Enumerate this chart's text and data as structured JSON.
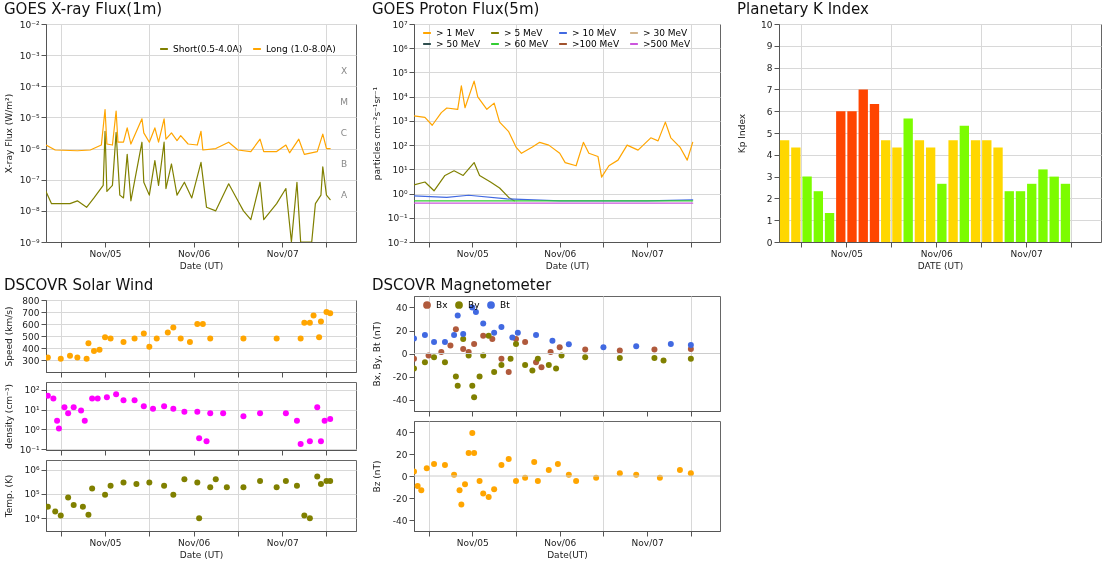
{
  "chart_data": [
    {
      "type": "line",
      "title": "GOES X-ray Flux(1m)",
      "xlabel": "Date (UT)",
      "ylabel": "X-ray Flux (W/m²)",
      "log": true,
      "grid": true,
      "legend": "top right",
      "xlim": [
        "--11-04T20:00",
        "--11-08T08:00"
      ],
      "ylim": [
        1e-09,
        0.01
      ],
      "xticks": [
        {
          "value": "--11-05T00:00",
          "label": null
        },
        {
          "value": "--11-05T12:00",
          "label": "Nov/05"
        },
        {
          "value": "--11-06T00:00",
          "label": null
        },
        {
          "value": "--11-06T12:00",
          "label": "Nov/06"
        },
        {
          "value": "--11-07T00:00",
          "label": null
        },
        {
          "value": "--11-07T12:00",
          "label": "Nov/07"
        },
        {
          "value": "--11-08T00:00",
          "label": null
        }
      ],
      "yticks": [
        {
          "value": 1e-09,
          "label": "10⁻⁹"
        },
        {
          "value": 1e-08,
          "label": "10⁻⁸"
        },
        {
          "value": 1e-07,
          "label": "10⁻⁷"
        },
        {
          "value": 1e-06,
          "label": "10⁻⁶"
        },
        {
          "value": 1e-05,
          "label": "10⁻⁵"
        },
        {
          "value": 0.0001,
          "label": "10⁻⁴"
        },
        {
          "value": 0.001,
          "label": "10⁻³"
        },
        {
          "value": 0.01,
          "label": "10⁻²"
        }
      ],
      "annotations": [
        "X",
        "M",
        "C",
        "B",
        "A"
      ],
      "series": [
        {
          "name": "Short(0.5-4.0A)",
          "color": "#808000",
          "x": [
            "--11-04T20:00",
            "--11-04T21:30",
            "--11-05T02:30",
            "--11-05T04:30",
            "--11-05T07:00",
            "--11-05T09:00",
            "--11-05T11:30",
            "--11-05T12:00",
            "--11-05T12:30",
            "--11-05T14:00",
            "--11-05T15:00",
            "--11-05T16:00",
            "--11-05T17:00",
            "--11-05T18:00",
            "--11-05T19:00",
            "--11-05T22:00",
            "--11-05T22:30",
            "--11-06T00:00",
            "--11-06T01:30",
            "--11-06T02:30",
            "--11-06T04:00",
            "--11-06T04:30",
            "--11-06T06:00",
            "--11-06T07:30",
            "--11-06T09:30",
            "--11-06T11:30",
            "--11-06T14:00",
            "--11-06T15:30",
            "--11-06T18:00",
            "--11-06T21:30",
            "--11-07T00:00",
            "--11-07T01:30",
            "--11-07T03:30",
            "--11-07T06:00",
            "--11-07T07:00",
            "--11-07T10:30",
            "--11-07T13:00",
            "--11-07T14:30",
            "--11-07T16:00",
            "--11-07T17:00",
            "--11-07T20:00",
            "--11-07T21:00",
            "--11-07T22:30",
            "--11-07T23:00",
            "--11-08T00:00",
            "--11-08T01:00"
          ],
          "values": [
            4.2e-08,
            1.7e-08,
            1.7e-08,
            2.1e-08,
            1.3e-08,
            2.6e-08,
            6.6e-08,
            3.6e-06,
            4.2e-08,
            6.6e-08,
            3.3e-06,
            3.2e-08,
            2.6e-08,
            6.5e-07,
            2.1e-08,
            1.6e-06,
            8.3e-08,
            3.2e-08,
            4.1e-07,
            6.6e-08,
            1.6e-06,
            5.2e-08,
            3.2e-07,
            3.2e-08,
            8.3e-08,
            2.6e-08,
            3.6e-07,
            1.3e-08,
            1e-08,
            7.4e-08,
            2.1e-08,
            1e-08,
            5.2e-09,
            8.3e-08,
            5.2e-09,
            1.7e-08,
            5.2e-08,
            1e-09,
            8.3e-08,
            1e-09,
            1e-09,
            1.7e-08,
            3.2e-08,
            2.6e-07,
            3.2e-08,
            2.3e-08
          ]
        },
        {
          "name": "Long (1.0-8.0A)",
          "color": "#ffa500",
          "x": [
            "--11-04T20:00",
            "--11-04T22:30",
            "--11-05T04:30",
            "--11-05T08:00",
            "--11-05T11:00",
            "--11-05T12:00",
            "--11-05T12:30",
            "--11-05T14:00",
            "--11-05T15:00",
            "--11-05T15:30",
            "--11-05T17:00",
            "--11-05T18:00",
            "--11-05T19:00",
            "--11-05T22:00",
            "--11-05T22:30",
            "--11-06T00:00",
            "--11-06T01:30",
            "--11-06T02:30",
            "--11-06T04:00",
            "--11-06T04:30",
            "--11-06T06:00",
            "--11-06T07:30",
            "--11-06T08:30",
            "--11-06T10:30",
            "--11-06T13:00",
            "--11-06T14:00",
            "--11-06T14:30",
            "--11-06T18:00",
            "--11-06T21:30",
            "--11-07T00:00",
            "--11-07T03:30",
            "--11-07T06:00",
            "--11-07T07:00",
            "--11-07T10:30",
            "--11-07T13:00",
            "--11-07T14:00",
            "--11-07T16:30",
            "--11-07T18:00",
            "--11-07T21:30",
            "--11-07T23:00",
            "--11-08T00:00",
            "--11-08T01:00"
          ],
          "values": [
            1.3e-06,
            9e-07,
            8.5e-07,
            9e-07,
            1.3e-06,
            1.8e-05,
            1.4e-06,
            1.3e-06,
            1.6e-05,
            1.6e-06,
            1.6e-06,
            4.6e-06,
            1.4e-06,
            9e-06,
            3.2e-06,
            1.6e-06,
            4.6e-06,
            1.6e-06,
            9e-06,
            2e-06,
            3.2e-06,
            1.8e-06,
            2.6e-06,
            1.4e-06,
            1.3e-06,
            3.6e-06,
            9e-07,
            1e-06,
            1.6e-06,
            9e-07,
            8e-07,
            2e-06,
            8e-07,
            8e-07,
            1.3e-06,
            7.3e-07,
            2e-06,
            6.5e-07,
            8e-07,
            2.9e-06,
            1e-06,
            1e-06
          ]
        }
      ]
    },
    {
      "type": "line",
      "title": "GOES Proton Flux(5m)",
      "xlabel": "Date (UT)",
      "ylabel": "particles cm⁻²s⁻¹sr⁻¹",
      "log": true,
      "grid": true,
      "legend": "top",
      "xlim": [
        "--11-04T20:00",
        "--11-08T08:00"
      ],
      "ylim": [
        0.01,
        10000000.0
      ],
      "xticks": [
        {
          "value": "--11-05T00:00",
          "label": null
        },
        {
          "value": "--11-05T12:00",
          "label": "Nov/05"
        },
        {
          "value": "--11-06T00:00",
          "label": null
        },
        {
          "value": "--11-06T12:00",
          "label": "Nov/06"
        },
        {
          "value": "--11-07T00:00",
          "label": null
        },
        {
          "value": "--11-07T12:00",
          "label": "Nov/07"
        },
        {
          "value": "--11-08T00:00",
          "label": null
        }
      ],
      "yticks": [
        {
          "value": 0.01,
          "label": "10⁻²"
        },
        {
          "value": 0.1,
          "label": "10⁻¹"
        },
        {
          "value": 1,
          "label": "10⁰"
        },
        {
          "value": 10,
          "label": "10¹"
        },
        {
          "value": 100,
          "label": "10²"
        },
        {
          "value": 1000,
          "label": "10³"
        },
        {
          "value": 10000,
          "label": "10⁴"
        },
        {
          "value": 100000,
          "label": "10⁵"
        },
        {
          "value": 1000000,
          "label": "10⁶"
        },
        {
          "value": 10000000,
          "label": "10⁷"
        }
      ],
      "series": [
        {
          "name": ">  1 MeV",
          "color": "#ffa500",
          "x": [
            "--11-04T20:00",
            "--11-04T23:00",
            "--11-05T01:00",
            "--11-05T03:30",
            "--11-05T05:00",
            "--11-05T08:00",
            "--11-05T09:00",
            "--11-05T10:00",
            "--11-05T12:30",
            "--11-05T13:30",
            "--11-05T16:00",
            "--11-05T18:00",
            "--11-05T19:30",
            "--11-05T22:00",
            "--11-06T00:00",
            "--11-06T01:30",
            "--11-06T04:30",
            "--11-06T06:30",
            "--11-06T09:00",
            "--11-06T12:00",
            "--11-06T13:30",
            "--11-06T16:30",
            "--11-06T18:30",
            "--11-06T20:00",
            "--11-06T22:30",
            "--11-06T23:30",
            "--11-07T01:30",
            "--11-07T04:00",
            "--11-07T06:30",
            "--11-07T09:30",
            "--11-07T13:00",
            "--11-07T15:00",
            "--11-07T17:00",
            "--11-07T18:30",
            "--11-07T21:00",
            "--11-07T23:00",
            "--11-08T00:30"
          ],
          "values": [
            1600,
            1400,
            660,
            2200,
            3400,
            3000,
            28000,
            3500,
            44000,
            9800,
            3000,
            5400,
            890,
            360,
            83,
            46,
            83,
            130,
            100,
            46,
            19,
            14,
            130,
            46,
            34,
            4.8,
            14,
            24,
            100,
            62,
            200,
            150,
            890,
            200,
            83,
            24,
            130
          ]
        },
        {
          "name": ">  5 MeV",
          "color": "#808000",
          "x": [
            "--11-04T20:00",
            "--11-04T23:00",
            "--11-05T01:30",
            "--11-05T04:30",
            "--11-05T07:00",
            "--11-05T09:30",
            "--11-05T12:30",
            "--11-05T14:00",
            "--11-05T17:00",
            "--11-05T19:30",
            "--11-05T22:00",
            "--11-05T23:30"
          ],
          "values": [
            2.3,
            3,
            1.3,
            5.6,
            8.7,
            5.6,
            19,
            5.6,
            3,
            1.7,
            0.69,
            0.5
          ]
        },
        {
          "name": "> 10 MeV",
          "color": "#4169e1",
          "x": [
            "--11-04T20:00",
            "--11-05T05:00",
            "--11-05T11:00",
            "--11-05T21:30",
            "--11-06T12:00",
            "--11-07T12:00",
            "--11-08T00:30"
          ],
          "values": [
            0.8,
            0.7,
            0.85,
            0.6,
            0.5,
            0.5,
            0.55
          ]
        },
        {
          "name": "> 30 MeV",
          "color": "#d2b48c"
        },
        {
          "name": "> 50 MeV",
          "color": "#2f4f4f"
        },
        {
          "name": "> 60 MeV",
          "color": "#32cd32",
          "x": [
            "--11-04T20:00",
            "--11-08T00:30"
          ],
          "values": [
            0.5,
            0.5
          ]
        },
        {
          "name": ">100 MeV",
          "color": "#a0522d"
        },
        {
          "name": ">500 MeV",
          "color": "#cc55dd",
          "x": [
            "--11-04T20:00",
            "--11-08T00:30"
          ],
          "values": [
            0.4,
            0.4
          ]
        }
      ]
    },
    {
      "type": "bar",
      "title": "Planetary K Index",
      "xlabel": "DATE (UT)",
      "ylabel": "Kp Index",
      "grid": true,
      "xlim": [
        "--11-04T18:00",
        "--11-08T08:00"
      ],
      "ylim": [
        0,
        10
      ],
      "xticks": [
        {
          "value": "--11-05T00:00",
          "label": null
        },
        {
          "value": "--11-05T12:00",
          "label": "Nov/05"
        },
        {
          "value": "--11-06T00:00",
          "label": null
        },
        {
          "value": "--11-06T12:00",
          "label": "Nov/06"
        },
        {
          "value": "--11-07T00:00",
          "label": null
        },
        {
          "value": "--11-07T12:00",
          "label": "Nov/07"
        },
        {
          "value": "--11-08T00:00",
          "label": null
        }
      ],
      "yticks": [
        0,
        1,
        2,
        3,
        4,
        5,
        6,
        7,
        8,
        9,
        10
      ],
      "x": [
        "--11-04T19:30",
        "--11-04T22:30",
        "--11-05T01:30",
        "--11-05T04:30",
        "--11-05T07:30",
        "--11-05T10:30",
        "--11-05T13:30",
        "--11-05T16:30",
        "--11-05T19:30",
        "--11-05T22:30",
        "--11-06T01:30",
        "--11-06T04:30",
        "--11-06T07:30",
        "--11-06T10:30",
        "--11-06T13:30",
        "--11-06T16:30",
        "--11-06T19:30",
        "--11-06T22:30",
        "--11-07T01:30",
        "--11-07T04:30",
        "--11-07T07:30",
        "--11-07T10:30",
        "--11-07T13:30",
        "--11-07T16:30",
        "--11-07T19:30",
        "--11-07T22:30"
      ],
      "values": [
        4.67,
        4.33,
        3,
        2.33,
        1.33,
        6,
        6,
        7,
        6.33,
        4.67,
        4.33,
        5.67,
        4.67,
        4.33,
        2.67,
        4.67,
        5.33,
        4.67,
        4.67,
        4.33,
        2.33,
        2.33,
        2.67,
        3.33,
        3,
        2.67
      ],
      "colors": [
        "#ffd700",
        "#ffd700",
        "#7cfc00",
        "#7cfc00",
        "#7cfc00",
        "#ff4500",
        "#ff4500",
        "#ff4500",
        "#ff4500",
        "#ffd700",
        "#ffd700",
        "#7cfc00",
        "#ffd700",
        "#ffd700",
        "#7cfc00",
        "#ffd700",
        "#7cfc00",
        "#ffd700",
        "#ffd700",
        "#ffd700",
        "#7cfc00",
        "#7cfc00",
        "#7cfc00",
        "#7cfc00",
        "#7cfc00",
        "#7cfc00"
      ]
    },
    {
      "type": "scatter",
      "title": "DSCOVR Solar Wind",
      "ylabel": "Speed (km/s)",
      "grid": true,
      "marker": "circle",
      "tick_labels": "y",
      "xlim": [
        "--11-04T20:00",
        "--11-08T08:00"
      ],
      "ylim": [
        200,
        800
      ],
      "xticks": [
        {
          "value": "--11-05T00:00",
          "label": null
        },
        {
          "value": "--11-05T12:00",
          "label": "Nov/05"
        },
        {
          "value": "--11-06T00:00",
          "label": null
        },
        {
          "value": "--11-06T12:00",
          "label": "Nov/06"
        },
        {
          "value": "--11-07T00:00",
          "label": null
        },
        {
          "value": "--11-07T12:00",
          "label": "Nov/07"
        },
        {
          "value": "--11-08T00:00",
          "label": null
        }
      ],
      "yticks": [
        300,
        400,
        500,
        600,
        700,
        800
      ],
      "series": [
        {
          "color": "#ffa500",
          "x": [
            "--11-04T20:30",
            "--11-05T00:00",
            "--11-05T02:30",
            "--11-05T04:30",
            "--11-05T07:00",
            "--11-05T07:30",
            "--11-05T09:00",
            "--11-05T10:30",
            "--11-05T12:00",
            "--11-05T13:30",
            "--11-05T17:00",
            "--11-05T20:00",
            "--11-05T22:30",
            "--11-06T00:00",
            "--11-06T02:00",
            "--11-06T05:00",
            "--11-06T06:30",
            "--11-06T08:30",
            "--11-06T11:00",
            "--11-06T13:00",
            "--11-06T14:30",
            "--11-06T16:30",
            "--11-07T01:30",
            "--11-07T10:30",
            "--11-07T17:00",
            "--11-07T18:00",
            "--11-07T19:30",
            "--11-07T20:30",
            "--11-07T22:00",
            "--11-07T22:30",
            "--11-08T00:00",
            "--11-08T01:00"
          ],
          "values": [
            320,
            310,
            335,
            320,
            310,
            440,
            375,
            385,
            490,
            480,
            450,
            480,
            520,
            410,
            480,
            530,
            570,
            480,
            450,
            600,
            600,
            480,
            480,
            480,
            480,
            610,
            610,
            670,
            490,
            620,
            700,
            690
          ]
        }
      ]
    },
    {
      "type": "scatter",
      "ylabel": "density (cm⁻³)",
      "log": true,
      "grid": true,
      "marker": "circle",
      "tick_labels": "y",
      "xlim": [
        "--11-04T20:00",
        "--11-08T08:00"
      ],
      "ylim": [
        0.09,
        250
      ],
      "xticks": [
        {
          "value": "--11-05T00:00",
          "label": null
        },
        {
          "value": "--11-05T12:00",
          "label": "Nov/05"
        },
        {
          "value": "--11-06T00:00",
          "label": null
        },
        {
          "value": "--11-06T12:00",
          "label": "Nov/06"
        },
        {
          "value": "--11-07T00:00",
          "label": null
        },
        {
          "value": "--11-07T12:00",
          "label": "Nov/07"
        },
        {
          "value": "--11-08T00:00",
          "label": null
        }
      ],
      "yticks": [
        {
          "value": 0.1,
          "label": "10⁻¹"
        },
        {
          "value": 1,
          "label": "10⁰"
        },
        {
          "value": 10,
          "label": "10¹"
        },
        {
          "value": 100,
          "label": "10²"
        }
      ],
      "series": [
        {
          "color": "#ff00ff",
          "x": [
            "--11-04T20:30",
            "--11-04T22:00",
            "--11-04T23:00",
            "--11-04T23:30",
            "--11-05T01:00",
            "--11-05T02:00",
            "--11-05T03:30",
            "--11-05T05:30",
            "--11-05T06:30",
            "--11-05T08:30",
            "--11-05T10:00",
            "--11-05T12:30",
            "--11-05T15:00",
            "--11-05T17:00",
            "--11-05T20:00",
            "--11-05T22:30",
            "--11-06T01:00",
            "--11-06T04:00",
            "--11-06T06:30",
            "--11-06T09:30",
            "--11-06T13:00",
            "--11-06T13:30",
            "--11-06T15:30",
            "--11-06T16:30",
            "--11-06T20:00",
            "--11-07T01:30",
            "--11-07T06:00",
            "--11-07T13:00",
            "--11-07T16:00",
            "--11-07T17:00",
            "--11-07T19:30",
            "--11-07T21:30",
            "--11-07T22:30",
            "--11-07T23:30",
            "--11-08T01:00"
          ],
          "values": [
            50,
            36,
            2.7,
            1.1,
            13,
            6.5,
            13,
            9,
            2.7,
            36,
            36,
            42,
            60,
            30,
            30,
            15,
            11,
            15,
            11,
            7.7,
            7.7,
            0.35,
            0.25,
            6.5,
            6.5,
            4.6,
            6.5,
            6.5,
            2.7,
            0.18,
            0.25,
            13,
            0.25,
            2.7,
            3.3
          ]
        }
      ]
    },
    {
      "type": "scatter",
      "xlabel": "Date (UT)",
      "ylabel": "Temp. (K)",
      "log": true,
      "grid": true,
      "marker": "circle",
      "xlim": [
        "--11-04T20:00",
        "--11-08T08:00"
      ],
      "ylim": [
        3000,
        2500000
      ],
      "xticks": [
        {
          "value": "--11-05T00:00",
          "label": null
        },
        {
          "value": "--11-05T12:00",
          "label": "Nov/05"
        },
        {
          "value": "--11-06T00:00",
          "label": null
        },
        {
          "value": "--11-06T12:00",
          "label": "Nov/06"
        },
        {
          "value": "--11-07T00:00",
          "label": null
        },
        {
          "value": "--11-07T12:00",
          "label": "Nov/07"
        },
        {
          "value": "--11-08T00:00",
          "label": null
        }
      ],
      "yticks": [
        {
          "value": 10000,
          "label": "10⁴"
        },
        {
          "value": 100000,
          "label": "10⁵"
        },
        {
          "value": 1000000,
          "label": "10⁶"
        }
      ],
      "series": [
        {
          "color": "#808000",
          "x": [
            "--11-04T20:30",
            "--11-04T22:30",
            "--11-05T00:00",
            "--11-05T02:00",
            "--11-05T03:30",
            "--11-05T06:00",
            "--11-05T07:30",
            "--11-05T08:30",
            "--11-05T12:00",
            "--11-05T13:30",
            "--11-05T17:00",
            "--11-05T20:30",
            "--11-06T00:00",
            "--11-06T04:00",
            "--11-06T06:30",
            "--11-06T09:30",
            "--11-06T13:00",
            "--11-06T13:30",
            "--11-06T16:30",
            "--11-06T18:00",
            "--11-06T21:00",
            "--11-07T01:30",
            "--11-07T06:00",
            "--11-07T10:30",
            "--11-07T13:00",
            "--11-07T16:00",
            "--11-07T18:00",
            "--11-07T19:30",
            "--11-07T21:30",
            "--11-07T22:30",
            "--11-08T00:00",
            "--11-08T01:00"
          ],
          "values": [
            30000,
            19000,
            13000,
            71000,
            35000,
            30000,
            14000,
            170000,
            94000,
            220000,
            300000,
            260000,
            300000,
            220000,
            94000,
            400000,
            300000,
            10000,
            190000,
            400000,
            190000,
            190000,
            340000,
            190000,
            340000,
            220000,
            13000,
            10000,
            530000,
            260000,
            340000,
            340000
          ]
        }
      ]
    },
    {
      "type": "scatter",
      "title": "DSCOVR Magnetometer",
      "ylabel": "Bx, By, Bt (nT)",
      "grid": "x",
      "marker": "circle",
      "legend": "top",
      "tick_labels": "y",
      "xlim": [
        "--11-04T20:00",
        "--11-08T08:00"
      ],
      "ylim": [
        -50,
        50
      ],
      "xticks": [
        {
          "value": "--11-05T00:00",
          "label": null
        },
        {
          "value": "--11-05T12:00",
          "label": "Nov/05"
        },
        {
          "value": "--11-06T00:00",
          "label": null
        },
        {
          "value": "--11-06T12:00",
          "label": "Nov/06"
        },
        {
          "value": "--11-07T00:00",
          "label": null
        },
        {
          "value": "--11-07T12:00",
          "label": "Nov/07"
        },
        {
          "value": "--11-08T00:00",
          "label": null
        }
      ],
      "yticks": [
        -40,
        -20,
        0,
        20,
        40
      ],
      "ref_lines": [
        {
          "axis": "y",
          "value": 0,
          "color": "#cccccc"
        }
      ],
      "series": [
        {
          "name": "Bx",
          "color": "#b05a3c",
          "x": [
            "--11-04T20:00",
            "--11-05T00:00",
            "--11-05T03:30",
            "--11-05T06:00",
            "--11-05T07:30",
            "--11-05T09:30",
            "--11-05T11:00",
            "--11-05T12:30",
            "--11-05T15:00",
            "--11-05T17:30",
            "--11-05T20:00",
            "--11-05T22:00",
            "--11-06T00:00",
            "--11-06T02:30",
            "--11-06T05:30",
            "--11-06T07:00",
            "--11-06T09:30",
            "--11-06T12:00",
            "--11-06T19:00",
            "--11-07T04:30",
            "--11-07T14:00",
            "--11-08T00:00"
          ],
          "values": [
            -4.6,
            -1.7,
            1.2,
            6.9,
            21,
            4,
            1.2,
            8.3,
            15.5,
            12.7,
            -4.6,
            -16,
            12.7,
            10,
            -7.5,
            -12,
            1.2,
            5.5,
            3.5,
            2.6,
            3.5,
            4
          ]
        },
        {
          "name": "By",
          "color": "#808000",
          "x": [
            "--11-04T20:00",
            "--11-04T23:00",
            "--11-05T01:30",
            "--11-05T04:30",
            "--11-05T07:30",
            "--11-05T08:00",
            "--11-05T09:30",
            "--11-05T11:00",
            "--11-05T12:00",
            "--11-05T12:30",
            "--11-05T14:00",
            "--11-05T15:00",
            "--11-05T16:30",
            "--11-05T18:00",
            "--11-05T20:00",
            "--11-05T22:30",
            "--11-06T00:00",
            "--11-06T02:30",
            "--11-06T04:30",
            "--11-06T06:00",
            "--11-06T09:00",
            "--11-06T11:00",
            "--11-06T12:30",
            "--11-06T19:00",
            "--11-07T04:30",
            "--11-07T14:00",
            "--11-07T16:30",
            "--11-08T00:00"
          ],
          "values": [
            -13,
            -7.5,
            -3.2,
            -7.5,
            -20,
            -28,
            12.7,
            -1.7,
            -28,
            -38,
            -20,
            -1.7,
            15.5,
            -16,
            -10,
            -4.6,
            8.3,
            -10,
            -14.7,
            -4.6,
            -10,
            -13,
            -1.7,
            -3.2,
            -4,
            -4,
            -6,
            -4.6
          ]
        },
        {
          "name": "Bt",
          "color": "#4169e1",
          "x": [
            "--11-04T20:00",
            "--11-04T23:00",
            "--11-05T01:30",
            "--11-05T04:30",
            "--11-05T07:00",
            "--11-05T08:00",
            "--11-05T09:30",
            "--11-05T12:00",
            "--11-05T13:00",
            "--11-05T15:00",
            "--11-05T18:00",
            "--11-05T20:00",
            "--11-05T23:00",
            "--11-06T00:30",
            "--11-06T05:30",
            "--11-06T10:00",
            "--11-06T14:30",
            "--11-07T00:00",
            "--11-07T09:00",
            "--11-07T18:30",
            "--11-08T00:00"
          ],
          "values": [
            13,
            16,
            10,
            10,
            16,
            33,
            17,
            40,
            36,
            26,
            18,
            23,
            14,
            18,
            16,
            11,
            8,
            5.5,
            6.3,
            8.3,
            7.5
          ]
        }
      ]
    },
    {
      "type": "scatter",
      "xlabel": "Date(UT)",
      "ylabel": "Bz (nT)",
      "grid": "x",
      "marker": "circle",
      "xlim": [
        "--11-04T20:00",
        "--11-08T08:00"
      ],
      "ylim": [
        -50,
        50
      ],
      "xticks": [
        {
          "value": "--11-05T00:00",
          "label": null
        },
        {
          "value": "--11-05T12:00",
          "label": "Nov/05"
        },
        {
          "value": "--11-06T00:00",
          "label": null
        },
        {
          "value": "--11-06T12:00",
          "label": "Nov/06"
        },
        {
          "value": "--11-07T00:00",
          "label": null
        },
        {
          "value": "--11-07T12:00",
          "label": "Nov/07"
        },
        {
          "value": "--11-08T00:00",
          "label": null
        }
      ],
      "yticks": [
        -40,
        -20,
        0,
        20,
        40
      ],
      "ref_lines": [
        {
          "axis": "y",
          "value": 0,
          "color": "#cccccc"
        }
      ],
      "series": [
        {
          "color": "#ffa500",
          "x": [
            "--11-04T20:00",
            "--11-04T21:00",
            "--11-04T22:00",
            "--11-04T23:30",
            "--11-05T01:30",
            "--11-05T04:30",
            "--11-05T07:00",
            "--11-05T08:30",
            "--11-05T09:00",
            "--11-05T10:00",
            "--11-05T11:00",
            "--11-05T12:00",
            "--11-05T12:30",
            "--11-05T14:00",
            "--11-05T15:00",
            "--11-05T16:30",
            "--11-05T18:00",
            "--11-05T20:00",
            "--11-05T22:00",
            "--11-06T00:00",
            "--11-06T02:30",
            "--11-06T05:00",
            "--11-06T06:00",
            "--11-06T09:00",
            "--11-06T11:30",
            "--11-06T14:30",
            "--11-06T16:30",
            "--11-06T22:00",
            "--11-07T04:30",
            "--11-07T09:00",
            "--11-07T15:30",
            "--11-07T21:00",
            "--11-08T00:00"
          ],
          "values": [
            4,
            -9,
            -13,
            7,
            11,
            10,
            1.2,
            -13,
            -26,
            -7.5,
            21,
            39,
            21,
            -4.6,
            -16,
            -19,
            -12,
            10,
            15.5,
            -4.6,
            -1.7,
            12.7,
            -4.6,
            5.5,
            11,
            1.2,
            -4.6,
            -1.7,
            2.6,
            1.2,
            -1.7,
            5.5,
            2.6
          ]
        }
      ]
    }
  ]
}
